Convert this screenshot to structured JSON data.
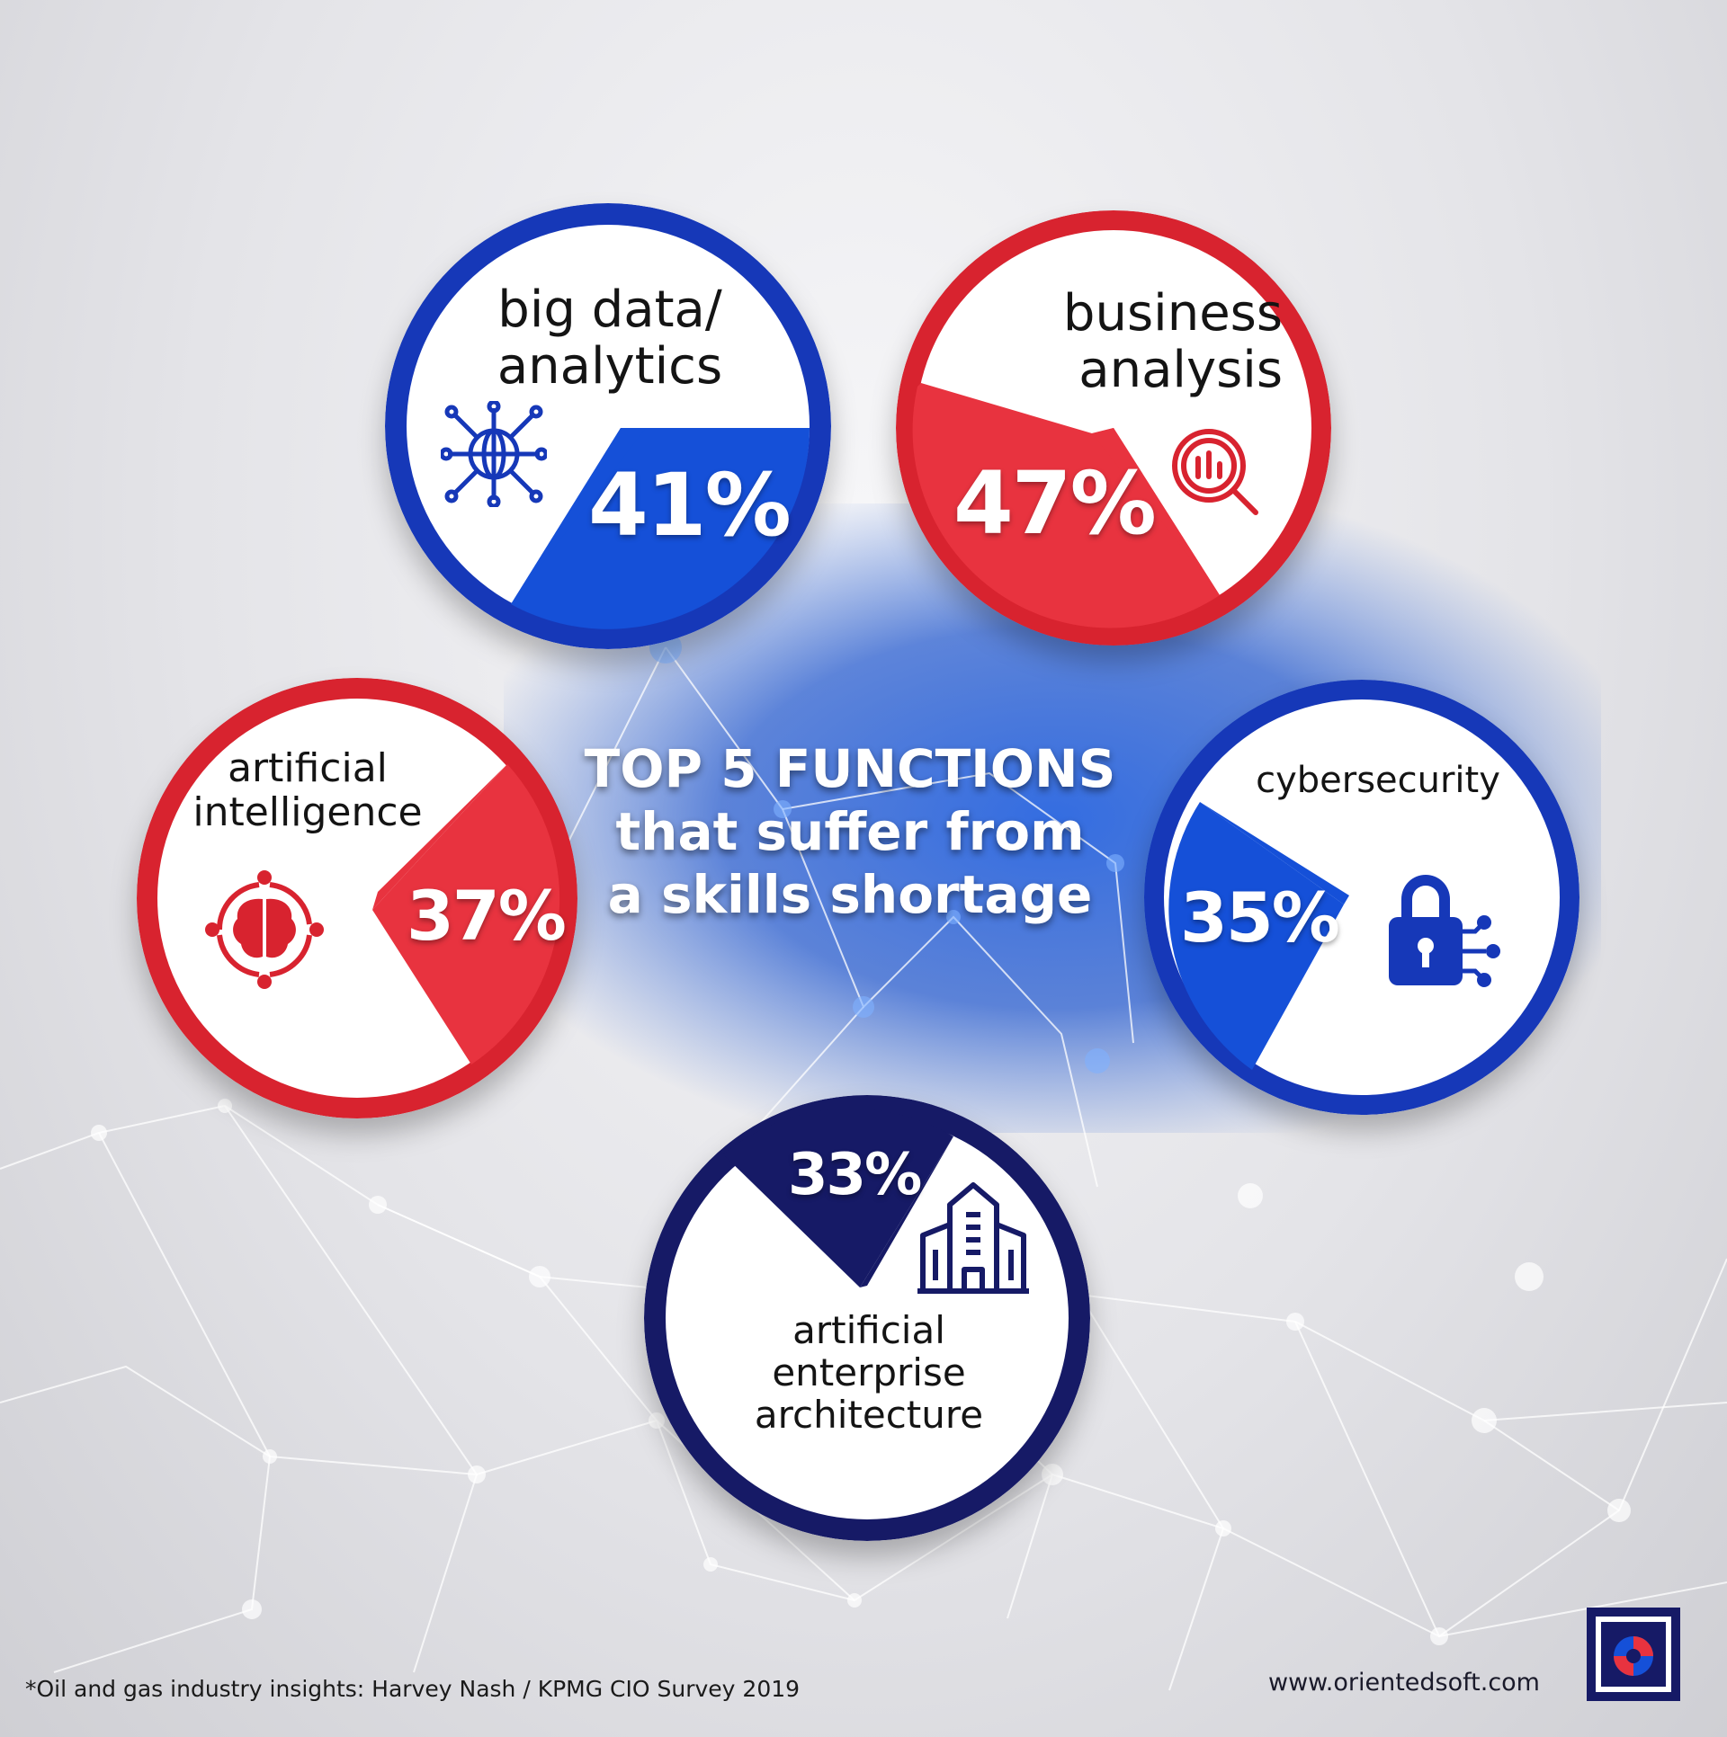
{
  "title": {
    "line1": "TOP 5 FUNCTIONS",
    "line2": "that suffer from",
    "line3": "a skills shortage"
  },
  "items": [
    {
      "label_line1": "big data/",
      "label_line2": "analytics",
      "value": "41%",
      "icon": "globe-network-icon",
      "color": "#1a4fd6"
    },
    {
      "label_line1": "business",
      "label_line2": "analysis",
      "value": "47%",
      "icon": "magnifier-chart-icon",
      "color": "#e8333f"
    },
    {
      "label_line1": "artificial",
      "label_line2": "intelligence",
      "value": "37%",
      "icon": "brain-icon",
      "color": "#e8333f"
    },
    {
      "label_line1": "cybersecurity",
      "value": "35%",
      "icon": "padlock-network-icon",
      "color": "#1a4fd6"
    },
    {
      "label_line1": "artificial",
      "label_line2": "enterprise",
      "label_line3": "architecture",
      "value": "33%",
      "icon": "building-icon",
      "color": "#161a66"
    }
  ],
  "footnote": "*Oil and gas industry insights: Harvey Nash / KPMG CIO Survey 2019",
  "website": "www.orientedsoft.com",
  "logo_icon": "orientedsoft-logo-icon"
}
